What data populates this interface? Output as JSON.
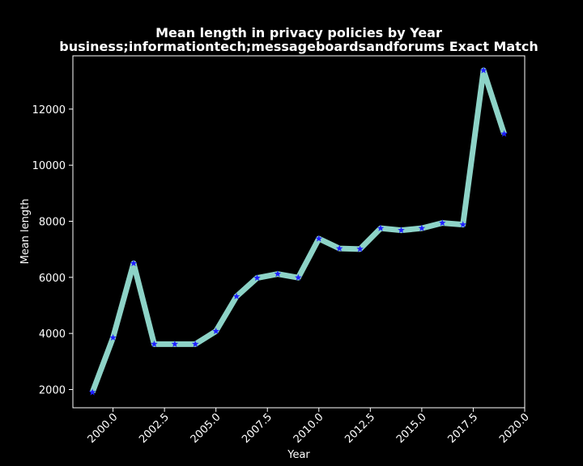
{
  "chart_data": {
    "type": "line",
    "title": "Mean length in privacy policies by Year",
    "subtitle": "business;informationtech;messageboardsandforums Exact Match",
    "xlabel": "Year",
    "ylabel": "Mean length",
    "xlim": [
      1998.05,
      2020.0
    ],
    "ylim": [
      1350,
      13900
    ],
    "xticks": [
      2000.0,
      2002.5,
      2005.0,
      2007.5,
      2010.0,
      2012.5,
      2015.0,
      2017.5,
      2020.0
    ],
    "xtick_labels": [
      "2000.0",
      "2002.5",
      "2005.0",
      "2007.5",
      "2010.0",
      "2012.5",
      "2015.0",
      "2017.5",
      "2020.0"
    ],
    "yticks": [
      2000,
      4000,
      6000,
      8000,
      10000,
      12000
    ],
    "ytick_labels": [
      "2000",
      "4000",
      "6000",
      "8000",
      "10000",
      "12000"
    ],
    "grid": false,
    "colors": {
      "background": "#000000",
      "line": "#8dd3c7",
      "marker": "#1f1fff",
      "text": "#ffffff"
    },
    "marker": "star",
    "series": [
      {
        "x": [
          1999,
          2000,
          2001,
          2002,
          2003,
          2004,
          2005,
          2006,
          2007,
          2008,
          2009,
          2010,
          2011,
          2012,
          2013,
          2014,
          2015,
          2016,
          2017,
          2018,
          2019
        ],
        "values": [
          1900,
          3850,
          6500,
          3620,
          3620,
          3620,
          4080,
          5320,
          5980,
          6120,
          5990,
          7380,
          7030,
          7010,
          7750,
          7680,
          7750,
          7940,
          7880,
          13380,
          11120
        ]
      }
    ]
  }
}
